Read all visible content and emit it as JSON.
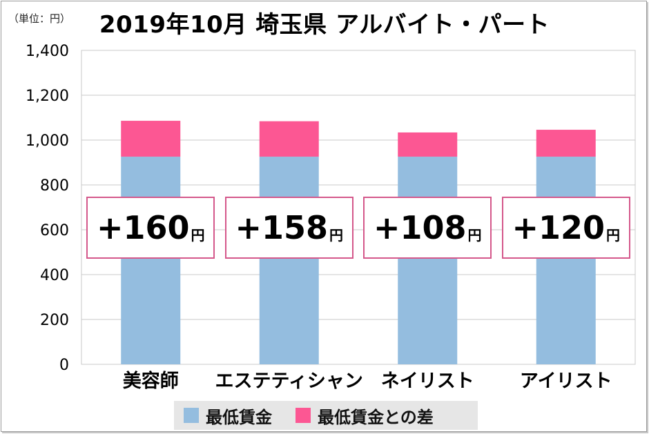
{
  "unit_label": "（単位：円）",
  "title": "2019年10月  埼玉県  アルバイト・パート",
  "colors": {
    "base": "#94bddf",
    "diff": "#fc5793",
    "grid": "#c8c8c8",
    "callout_border": "#d4578a"
  },
  "chart_data": {
    "type": "bar",
    "stacked": true,
    "categories": [
      "美容師",
      "エステティシャン",
      "ネイリスト",
      "アイリスト"
    ],
    "series": [
      {
        "name": "最低賃金",
        "values": [
          926,
          926,
          926,
          926
        ]
      },
      {
        "name": "最低賃金との差",
        "values": [
          160,
          158,
          108,
          120
        ]
      }
    ],
    "ylim": [
      0,
      1400
    ],
    "yticks": [
      "0",
      "200",
      "400",
      "600",
      "800",
      "1,000",
      "1,200",
      "1,400"
    ],
    "grid": true,
    "legend": "bottom"
  },
  "callouts": [
    {
      "sign": "+",
      "value": "160",
      "unit": "円"
    },
    {
      "sign": "+",
      "value": "158",
      "unit": "円"
    },
    {
      "sign": "+",
      "value": "108",
      "unit": "円"
    },
    {
      "sign": "+",
      "value": "120",
      "unit": "円"
    }
  ],
  "legend": [
    {
      "label": "最低賃金"
    },
    {
      "label": "最低賃金との差"
    }
  ]
}
